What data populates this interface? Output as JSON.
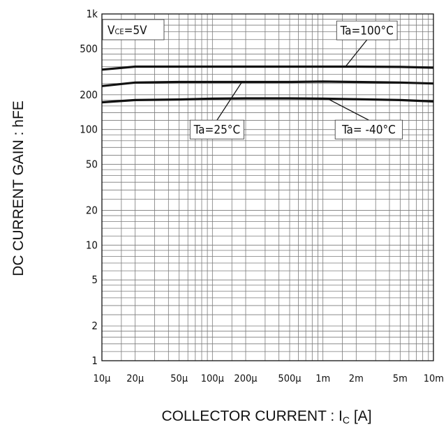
{
  "chart_data": {
    "type": "line",
    "xscale": "log",
    "yscale": "log",
    "xlim": [
      1e-05,
      0.01
    ],
    "ylim": [
      1,
      1000
    ],
    "grid": true,
    "xlabel": "COLLECTOR CURRENT : I",
    "xlabel_sub": "C",
    "xlabel_unit": " [A]",
    "ylabel": "DC CURRENT GAIN : hFE",
    "condition": {
      "main": "V",
      "sub": "CE",
      "rest": "=5V"
    },
    "x_ticks": [
      {
        "value": 1e-05,
        "label": "10μ"
      },
      {
        "value": 2e-05,
        "label": "20μ"
      },
      {
        "value": 5e-05,
        "label": "50μ"
      },
      {
        "value": 0.0001,
        "label": "100μ"
      },
      {
        "value": 0.0002,
        "label": "200μ"
      },
      {
        "value": 0.0005,
        "label": "500μ"
      },
      {
        "value": 0.001,
        "label": "1m"
      },
      {
        "value": 0.002,
        "label": "2m"
      },
      {
        "value": 0.005,
        "label": "5m"
      },
      {
        "value": 0.01,
        "label": "10m"
      }
    ],
    "y_ticks": [
      {
        "value": 1,
        "label": "1"
      },
      {
        "value": 2,
        "label": "2"
      },
      {
        "value": 5,
        "label": "5"
      },
      {
        "value": 10,
        "label": "10"
      },
      {
        "value": 20,
        "label": "20"
      },
      {
        "value": 50,
        "label": "50"
      },
      {
        "value": 100,
        "label": "100"
      },
      {
        "value": 200,
        "label": "200"
      },
      {
        "value": 500,
        "label": "500"
      },
      {
        "value": 1000,
        "label": "1k"
      }
    ],
    "series": [
      {
        "name": "Ta=100°C",
        "x": [
          1e-05,
          2e-05,
          5e-05,
          0.0001,
          0.0002,
          0.0005,
          0.001,
          0.002,
          0.005,
          0.01
        ],
        "y": [
          330,
          350,
          350,
          350,
          350,
          350,
          350,
          350,
          348,
          343
        ]
      },
      {
        "name": "Ta=25°C",
        "x": [
          1e-05,
          2e-05,
          5e-05,
          0.0001,
          0.0002,
          0.0005,
          0.001,
          0.002,
          0.005,
          0.01
        ],
        "y": [
          238,
          255,
          258,
          258,
          258,
          258,
          260,
          258,
          255,
          250
        ]
      },
      {
        "name": "Ta= -40°C",
        "x": [
          1e-05,
          2e-05,
          5e-05,
          0.0001,
          0.0002,
          0.0005,
          0.001,
          0.002,
          0.005,
          0.01
        ],
        "y": [
          172,
          180,
          182,
          185,
          186,
          186,
          185,
          183,
          180,
          175
        ]
      }
    ],
    "annotations": [
      {
        "series": "Ta=100°C",
        "text": "Ta=100°C",
        "at": {
          "x": 0.0025,
          "y": 720
        },
        "points_to": {
          "x": 0.0016,
          "y": 350
        }
      },
      {
        "series": "Ta=25°C",
        "text": "Ta=25°C",
        "at": {
          "x": 0.00011,
          "y": 100
        },
        "points_to": {
          "x": 0.000185,
          "y": 258
        }
      },
      {
        "series": "Ta= -40°C",
        "text": "Ta= -40°C",
        "at": {
          "x": 0.0026,
          "y": 100
        },
        "points_to": {
          "x": 0.0011,
          "y": 185
        }
      }
    ]
  }
}
